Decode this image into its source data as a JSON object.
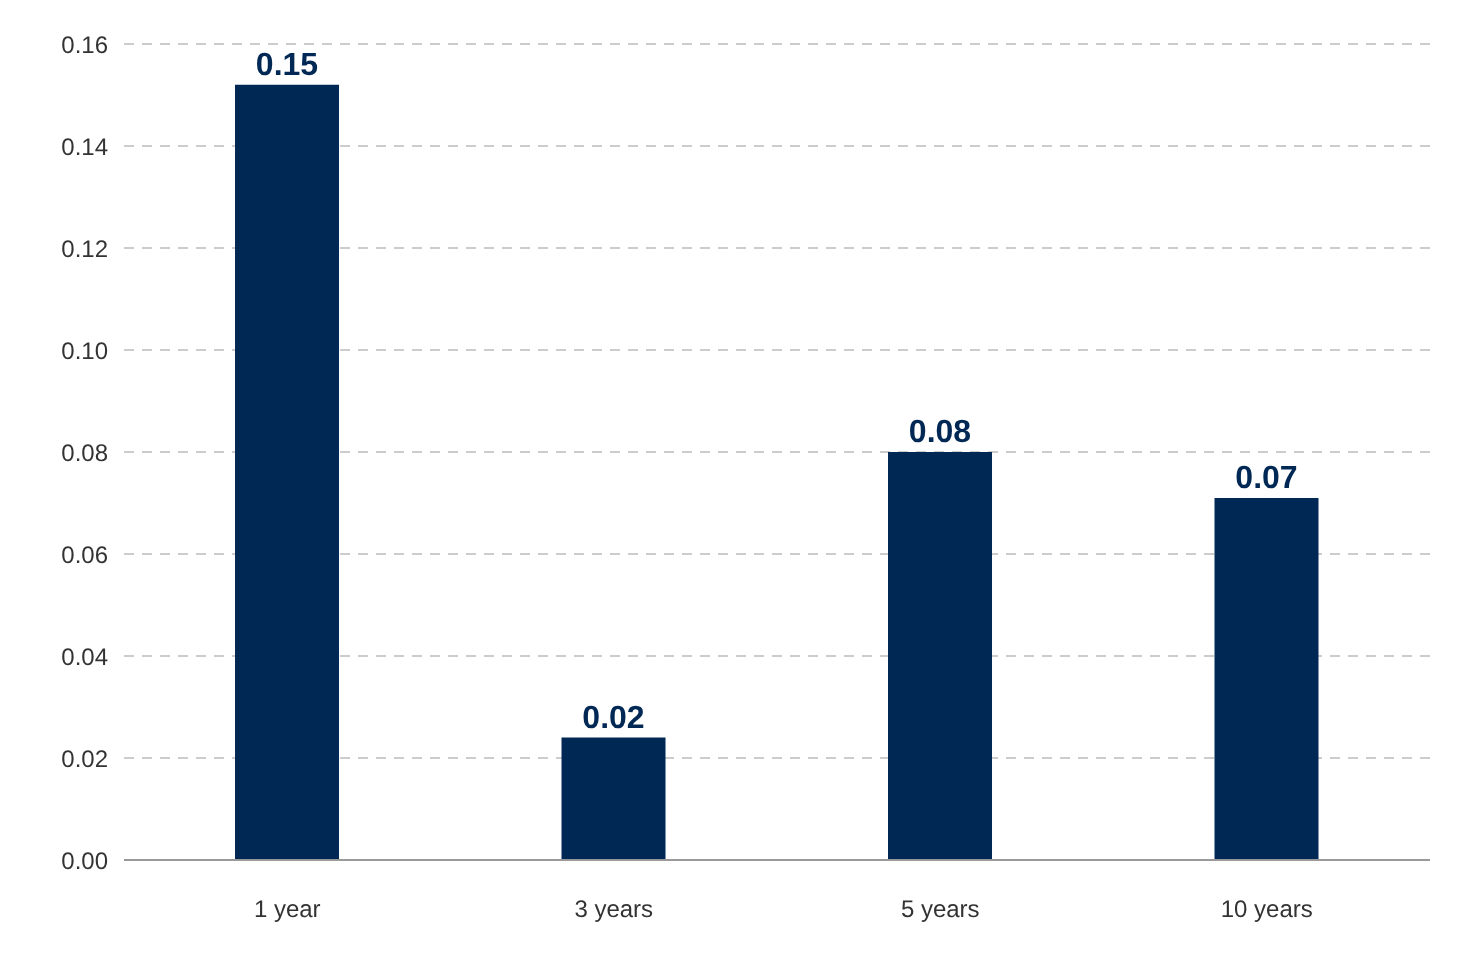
{
  "chart_data": {
    "type": "bar",
    "categories": [
      "1 year",
      "3 years",
      "5 years",
      "10 years"
    ],
    "values": [
      0.152,
      0.024,
      0.08,
      0.071
    ],
    "value_labels": [
      "0.15",
      "0.02",
      "0.08",
      "0.07"
    ],
    "color": "#002855",
    "ylim": [
      0,
      0.16
    ],
    "yticks": [
      {
        "value": 0,
        "label": "0.00"
      },
      {
        "value": 0.02,
        "label": "0.02"
      },
      {
        "value": 0.04,
        "label": "0.04"
      },
      {
        "value": 0.06,
        "label": "0.06"
      },
      {
        "value": 0.08,
        "label": "0.08"
      },
      {
        "value": 0.1,
        "label": "0.10"
      },
      {
        "value": 0.12,
        "label": "0.12"
      },
      {
        "value": 0.14,
        "label": "0.14"
      },
      {
        "value": 0.16,
        "label": "0.16"
      }
    ],
    "grid": "y",
    "legend": false
  }
}
